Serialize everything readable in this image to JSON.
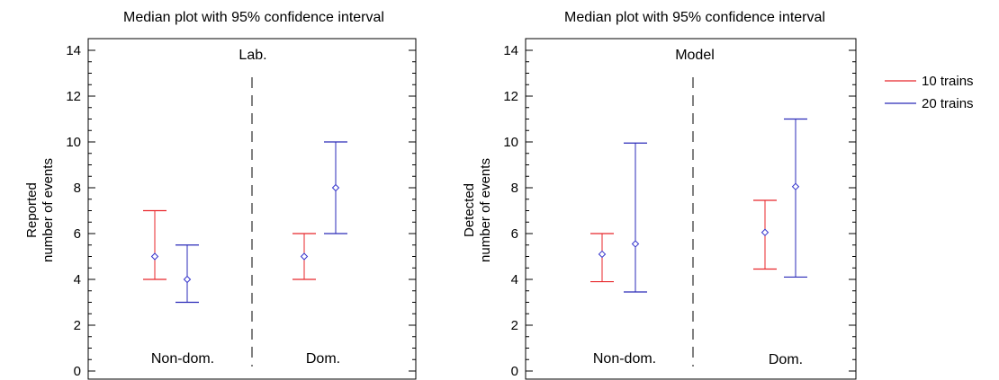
{
  "chart_data": [
    {
      "type": "errorbar",
      "title": "Median plot with 95% confidence interval",
      "panel_label": "Lab.",
      "ylabel_lines": [
        "Reported",
        "number of events"
      ],
      "ylim": [
        0,
        14
      ],
      "yticks": [
        0,
        2,
        4,
        6,
        8,
        10,
        12,
        14
      ],
      "groups": [
        "Non-dom.",
        "Dom."
      ],
      "grid": false,
      "series": [
        {
          "name": "10 trains",
          "color": "#e8262a",
          "points": [
            {
              "group": "Non-dom.",
              "median": 5,
              "low": 4,
              "high": 7
            },
            {
              "group": "Dom.",
              "median": 5,
              "low": 4,
              "high": 6
            }
          ]
        },
        {
          "name": "20 trains",
          "color": "#2a2ab8",
          "points": [
            {
              "group": "Non-dom.",
              "median": 4,
              "low": 3,
              "high": 5.5
            },
            {
              "group": "Dom.",
              "median": 8,
              "low": 6,
              "high": 10
            }
          ]
        }
      ]
    },
    {
      "type": "errorbar",
      "title": "Median plot with 95% confidence interval",
      "panel_label": "Model",
      "ylabel_lines": [
        "Detected",
        "number of events"
      ],
      "ylim": [
        0,
        14
      ],
      "yticks": [
        0,
        2,
        4,
        6,
        8,
        10,
        12,
        14
      ],
      "groups": [
        "Non-dom.",
        "Dom."
      ],
      "grid": false,
      "series": [
        {
          "name": "10 trains",
          "color": "#e8262a",
          "points": [
            {
              "group": "Non-dom.",
              "median": 5.1,
              "low": 3.9,
              "high": 6
            },
            {
              "group": "Dom.",
              "median": 6.05,
              "low": 4.45,
              "high": 7.45
            }
          ]
        },
        {
          "name": "20 trains",
          "color": "#2a2ab8",
          "points": [
            {
              "group": "Non-dom.",
              "median": 5.55,
              "low": 3.45,
              "high": 9.95
            },
            {
              "group": "Dom.",
              "median": 8.05,
              "low": 4.1,
              "high": 11
            }
          ]
        }
      ]
    }
  ],
  "legend": {
    "placement": "right",
    "items": [
      {
        "name": "10 trains",
        "color": "#e8262a"
      },
      {
        "name": "20 trains",
        "color": "#2a2ab8"
      }
    ]
  }
}
